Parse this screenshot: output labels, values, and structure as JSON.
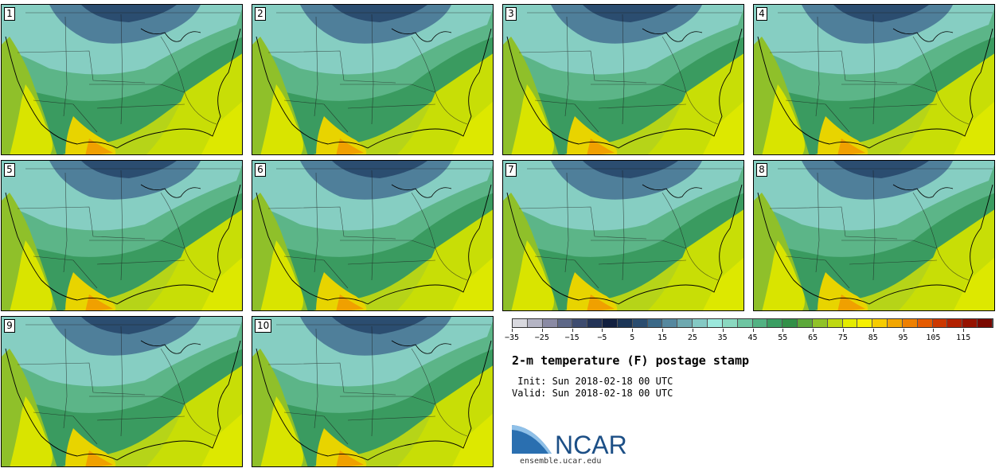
{
  "panels": [
    {
      "label": "1"
    },
    {
      "label": "2"
    },
    {
      "label": "3"
    },
    {
      "label": "4"
    },
    {
      "label": "5"
    },
    {
      "label": "6"
    },
    {
      "label": "7"
    },
    {
      "label": "8"
    },
    {
      "label": "9"
    },
    {
      "label": "10"
    }
  ],
  "colorbar": {
    "colors": [
      "#d9d9df",
      "#b4b4c4",
      "#8a8aa4",
      "#5e6888",
      "#3e4c70",
      "#243458",
      "#122040",
      "#1b3556",
      "#2b4d70",
      "#3b6988",
      "#55889f",
      "#6ea9b0",
      "#84c9c4",
      "#9be8dc",
      "#8ad8c0",
      "#6ec5a2",
      "#52b283",
      "#3a9e62",
      "#329048",
      "#5ca83a",
      "#90c228",
      "#bed812",
      "#e4ec00",
      "#f6f000",
      "#f6cc00",
      "#f2a600",
      "#ee8000",
      "#e45a00",
      "#cc3800",
      "#b22000",
      "#961200",
      "#7a0800"
    ],
    "tick_labels": [
      "−35",
      "−25",
      "−15",
      "−5",
      "5",
      "15",
      "25",
      "35",
      "45",
      "55",
      "65",
      "75",
      "85",
      "95",
      "105",
      "115"
    ]
  },
  "title": "2-m temperature (F) postage stamp",
  "init": " Init: Sun 2018-02-18 00 UTC",
  "valid": "Valid: Sun 2018-02-18 00 UTC",
  "logo": {
    "text": "NCAR",
    "url": "ensemble.ucar.edu"
  }
}
